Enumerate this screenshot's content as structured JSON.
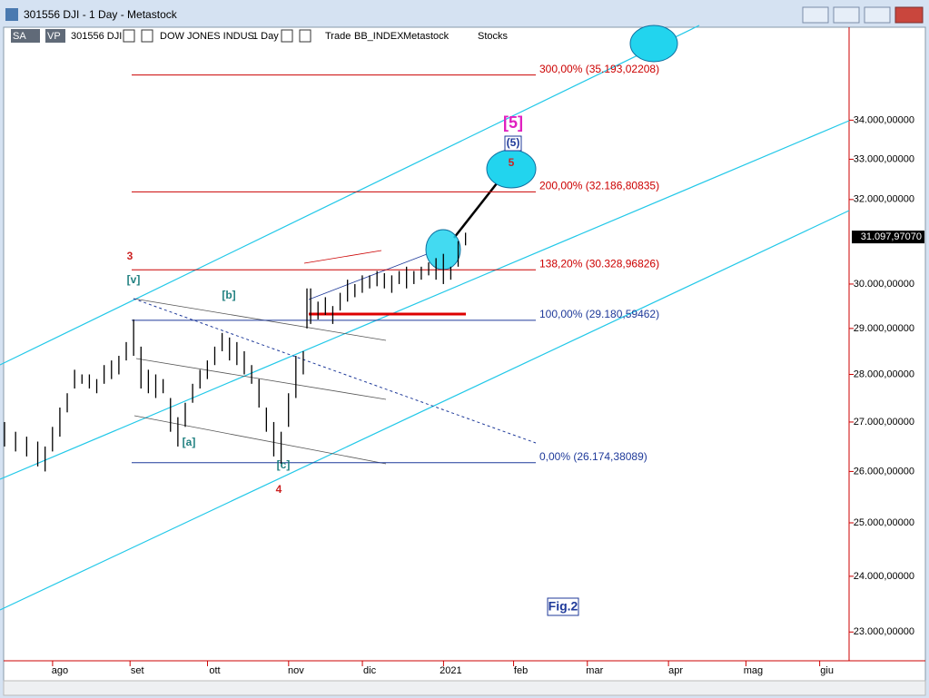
{
  "window": {
    "title": "301556 DJI - 1 Day - Metastock"
  },
  "toolbar": {
    "items": [
      "SA",
      "VP",
      "301556 DJI",
      "DOW JONES INDUS",
      "1 Day",
      "Trade",
      "BB_INDEX",
      "Metastock",
      "Stocks"
    ]
  },
  "chart_data": {
    "type": "bar",
    "log_scale": true,
    "ylim": [
      22500,
      36500
    ],
    "yticks": [
      {
        "value": 23000,
        "label": "23.000,00000"
      },
      {
        "value": 24000,
        "label": "24.000,00000"
      },
      {
        "value": 25000,
        "label": "25.000,00000"
      },
      {
        "value": 26000,
        "label": "26.000,00000"
      },
      {
        "value": 27000,
        "label": "27.000,00000"
      },
      {
        "value": 28000,
        "label": "28.000,00000"
      },
      {
        "value": 29000,
        "label": "29.000,00000"
      },
      {
        "value": 30000,
        "label": "30.000,00000"
      },
      {
        "value": 32000,
        "label": "32.000,00000"
      },
      {
        "value": 33000,
        "label": "33.000,00000"
      },
      {
        "value": 34000,
        "label": "34.000,00000"
      }
    ],
    "xlim": [
      -15,
      214
    ],
    "xticks": [
      {
        "value": 0,
        "label": "ago"
      },
      {
        "value": 21,
        "label": "set"
      },
      {
        "value": 42,
        "label": "ott"
      },
      {
        "value": 64,
        "label": "nov"
      },
      {
        "value": 84,
        "label": "dic"
      },
      {
        "value": 106,
        "label": "2021"
      },
      {
        "value": 125,
        "label": "feb"
      },
      {
        "value": 145,
        "label": "mar"
      },
      {
        "value": 167,
        "label": "apr"
      },
      {
        "value": 188,
        "label": "mag"
      },
      {
        "value": 208,
        "label": "giu"
      }
    ],
    "x": [
      -15,
      -12,
      -9,
      -6,
      -4,
      -2,
      0,
      2,
      4,
      6,
      8,
      10,
      12,
      14,
      16,
      18,
      20,
      22,
      24,
      26,
      28,
      30,
      32,
      34,
      36,
      38,
      40,
      42,
      44,
      46,
      48,
      50,
      52,
      54,
      56,
      58,
      60,
      62,
      64,
      66,
      67,
      68,
      70,
      72,
      74,
      76,
      78,
      80,
      82,
      84,
      86,
      88,
      90,
      92,
      94,
      96,
      98,
      100,
      102,
      104,
      106,
      108,
      110
    ],
    "low": [
      26500,
      26400,
      26300,
      26100,
      26000,
      26400,
      26700,
      27200,
      27700,
      27800,
      27700,
      27600,
      27800,
      27900,
      28000,
      28300,
      28400,
      27700,
      27600,
      27500,
      27600,
      26800,
      26500,
      26900,
      27400,
      27700,
      27900,
      28200,
      28500,
      28300,
      28200,
      28000,
      27800,
      27300,
      26800,
      26300,
      26150,
      26900,
      27500,
      28000,
      29000,
      29100,
      29200,
      29300,
      29100,
      29400,
      29600,
      29700,
      29800,
      29900,
      29950,
      29900,
      29800,
      30000,
      29900,
      30000,
      30100,
      30200,
      30100,
      30000,
      30100,
      30400,
      30900
    ],
    "high": [
      27000,
      26800,
      26700,
      26600,
      26500,
      26900,
      27300,
      27600,
      28100,
      28000,
      28000,
      27900,
      28200,
      28300,
      28400,
      28700,
      29200,
      28600,
      28100,
      28000,
      27900,
      27500,
      27100,
      27400,
      27800,
      28100,
      28300,
      28600,
      28900,
      28800,
      28700,
      28500,
      28200,
      27900,
      27300,
      27000,
      26800,
      27600,
      28400,
      28500,
      29900,
      29900,
      29600,
      29700,
      29500,
      29800,
      30100,
      30000,
      30200,
      30200,
      30300,
      30250,
      30200,
      30300,
      30400,
      30300,
      30400,
      30500,
      30600,
      30700,
      30400,
      31000,
      31200
    ],
    "last_price": 31097.9707,
    "last_price_label": "31.097,97070",
    "fib_levels": [
      {
        "value": 35193.02208,
        "label": "300,00% (35.193,02208)",
        "color": "#cc0000"
      },
      {
        "value": 32186.80835,
        "label": "200,00% (32.186,80835)",
        "color": "#cc0000"
      },
      {
        "value": 30328.96826,
        "label": "138,20% (30.328,96826)",
        "color": "#cc0000"
      },
      {
        "value": 29180.59462,
        "label": "100,00% (29.180,59462)",
        "color": "#1f3a9a"
      },
      {
        "value": 26174.38089,
        "label": "0,00% (26.174,38089)",
        "color": "#1f3a9a"
      }
    ],
    "wave_labels": [
      "3",
      "[v]",
      "[b]",
      "[a]",
      "[c]",
      "4",
      "[5]",
      "(5)",
      "5"
    ],
    "annotation": "Fig.2"
  }
}
